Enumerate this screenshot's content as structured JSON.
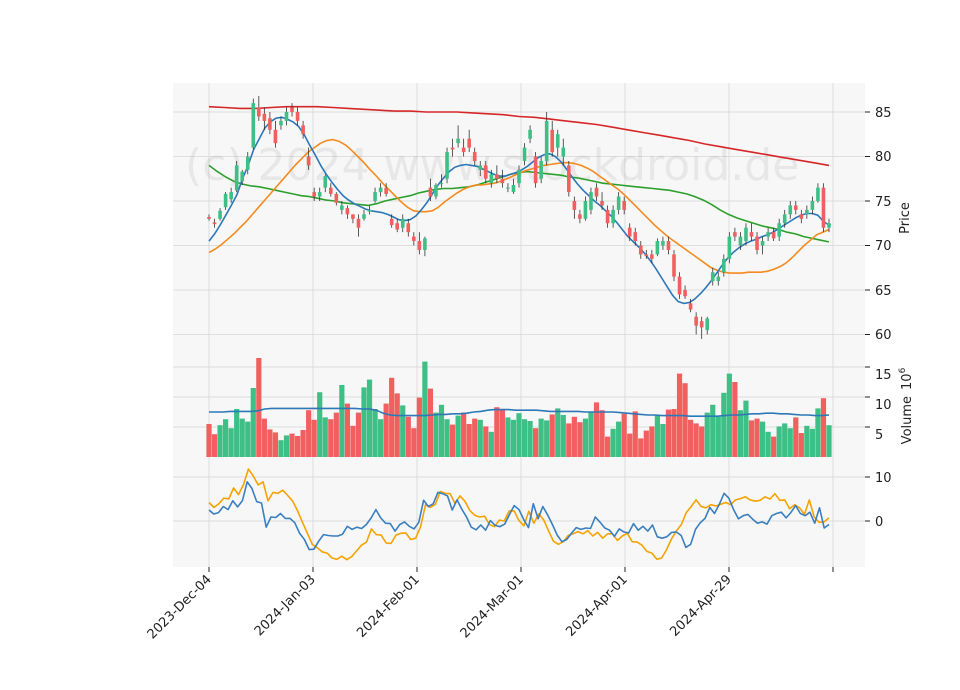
{
  "watermark": "(c) 2024 www.stockdroid.de",
  "colors": {
    "up": "#3dbf86",
    "down": "#f25f5f",
    "panel_bg": "#f7f7f7",
    "grid": "#d6d6d6",
    "sma_fast": "#2c78b8",
    "sma_mid": "#f58a1f",
    "sma_slow": "#2ca02c",
    "sma_long": "#d62728",
    "volume_avg": "#2c78b8",
    "macd": "#3a7fc0",
    "signal": "#f5a300"
  },
  "axes": {
    "price_label": "Price",
    "volume_label": "Volume",
    "volume_exp_base": "10",
    "volume_exp_power": "6",
    "price_ticks": [
      "60",
      "65",
      "70",
      "75",
      "80",
      "85"
    ],
    "volume_ticks": [
      "5",
      "10",
      "15"
    ],
    "macd_ticks": [
      "0",
      "10"
    ],
    "x_tick_labels": [
      "2023-Dec-04",
      "2024-Jan-03",
      "2024-Feb-01",
      "2024-Mar-01",
      "2024-Apr-01",
      "2024-Apr-29"
    ]
  },
  "chart_data": {
    "type": "candlestick",
    "ohlc": [
      [
        73.2,
        73.5,
        72.8,
        73.0
      ],
      [
        72.6,
        73.0,
        72.0,
        72.4
      ],
      [
        73.0,
        74.2,
        72.8,
        73.9
      ],
      [
        74.3,
        76.0,
        74.0,
        75.8
      ],
      [
        75.2,
        76.5,
        74.8,
        76.0
      ],
      [
        76.2,
        79.5,
        76.0,
        79.0
      ],
      [
        77.2,
        78.5,
        76.8,
        78.3
      ],
      [
        78.5,
        80.5,
        78.0,
        80.0
      ],
      [
        81.0,
        86.5,
        80.8,
        86.0
      ],
      [
        85.5,
        86.8,
        84.0,
        84.5
      ],
      [
        84.8,
        85.5,
        83.0,
        84.0
      ],
      [
        84.3,
        85.0,
        82.5,
        83.0
      ],
      [
        83.0,
        84.0,
        81.0,
        81.5
      ],
      [
        83.5,
        84.5,
        83.0,
        84.0
      ],
      [
        84.0,
        85.5,
        83.5,
        85.0
      ],
      [
        85.5,
        86.0,
        84.5,
        85.0
      ],
      [
        85.0,
        85.5,
        83.5,
        84.0
      ],
      [
        83.5,
        84.0,
        82.0,
        82.5
      ],
      [
        80.0,
        81.0,
        78.5,
        79.0
      ],
      [
        76.0,
        76.5,
        75.0,
        75.5
      ],
      [
        75.5,
        76.5,
        75.0,
        76.0
      ],
      [
        76.5,
        78.0,
        76.0,
        77.8
      ],
      [
        76.5,
        77.0,
        75.5,
        75.8
      ],
      [
        75.8,
        76.0,
        74.5,
        74.8
      ],
      [
        74.0,
        75.0,
        73.5,
        74.5
      ],
      [
        74.2,
        74.5,
        73.0,
        73.5
      ],
      [
        73.5,
        73.5,
        72.5,
        73.0
      ],
      [
        73.0,
        73.5,
        71.0,
        72.0
      ],
      [
        73.0,
        74.0,
        72.8,
        73.5
      ],
      [
        73.8,
        74.5,
        73.5,
        74.0
      ],
      [
        75.0,
        76.5,
        74.8,
        76.0
      ],
      [
        76.0,
        77.0,
        75.5,
        76.5
      ],
      [
        76.5,
        77.0,
        75.5,
        75.8
      ],
      [
        73.0,
        73.5,
        72.0,
        72.3
      ],
      [
        72.5,
        73.0,
        71.5,
        71.8
      ],
      [
        72.0,
        73.5,
        71.5,
        73.0
      ],
      [
        72.5,
        73.0,
        71.0,
        71.5
      ],
      [
        71.0,
        71.5,
        70.0,
        70.5
      ],
      [
        70.5,
        71.5,
        69.0,
        69.5
      ],
      [
        69.5,
        71.0,
        68.8,
        70.8
      ],
      [
        76.5,
        77.5,
        75.0,
        75.5
      ],
      [
        75.5,
        77.0,
        75.2,
        76.8
      ],
      [
        77.0,
        78.0,
        76.5,
        77.0
      ],
      [
        77.5,
        81.0,
        77.0,
        80.5
      ],
      [
        81.0,
        82.0,
        80.0,
        80.8
      ],
      [
        81.5,
        83.5,
        81.0,
        82.0
      ],
      [
        81.0,
        82.0,
        80.0,
        80.5
      ],
      [
        82.0,
        83.0,
        80.5,
        81.0
      ],
      [
        80.5,
        81.0,
        79.0,
        79.5
      ],
      [
        78.5,
        79.5,
        77.8,
        79.0
      ],
      [
        79.0,
        79.5,
        77.0,
        77.5
      ],
      [
        77.0,
        78.5,
        76.5,
        78.0
      ],
      [
        78.0,
        79.0,
        77.0,
        77.5
      ],
      [
        77.5,
        78.5,
        76.5,
        77.0
      ],
      [
        76.5,
        77.0,
        76.0,
        76.5
      ],
      [
        76.0,
        77.5,
        75.8,
        76.8
      ],
      [
        77.0,
        79.0,
        76.5,
        78.5
      ],
      [
        79.5,
        81.5,
        79.0,
        81.0
      ],
      [
        82.0,
        83.5,
        81.5,
        83.0
      ],
      [
        80.0,
        80.5,
        76.5,
        77.0
      ],
      [
        77.5,
        80.0,
        77.0,
        79.5
      ],
      [
        79.5,
        85.0,
        79.0,
        84.0
      ],
      [
        83.0,
        84.0,
        80.0,
        80.5
      ],
      [
        81.0,
        83.0,
        80.0,
        82.5
      ],
      [
        80.0,
        82.0,
        79.0,
        81.0
      ],
      [
        79.0,
        79.5,
        75.5,
        76.0
      ],
      [
        75.0,
        75.5,
        73.0,
        74.0
      ],
      [
        73.5,
        74.0,
        72.5,
        73.0
      ],
      [
        73.0,
        75.5,
        72.8,
        75.0
      ],
      [
        74.0,
        76.5,
        73.5,
        76.0
      ],
      [
        76.5,
        77.0,
        75.0,
        75.5
      ],
      [
        75.0,
        76.0,
        74.0,
        74.5
      ],
      [
        74.0,
        74.5,
        72.0,
        72.5
      ],
      [
        72.5,
        74.5,
        72.0,
        74.0
      ],
      [
        74.0,
        76.0,
        73.5,
        75.5
      ],
      [
        75.0,
        75.5,
        73.5,
        74.0
      ],
      [
        72.0,
        72.5,
        70.5,
        71.0
      ],
      [
        71.5,
        72.0,
        70.0,
        70.5
      ],
      [
        70.0,
        70.5,
        68.5,
        69.0
      ],
      [
        69.0,
        69.5,
        68.5,
        68.8
      ],
      [
        69.0,
        69.5,
        68.0,
        68.5
      ],
      [
        69.0,
        70.8,
        68.8,
        70.5
      ],
      [
        70.0,
        71.0,
        69.5,
        70.5
      ],
      [
        70.5,
        71.0,
        69.0,
        69.5
      ],
      [
        69.0,
        69.5,
        66.0,
        66.5
      ],
      [
        66.5,
        67.0,
        64.0,
        64.5
      ],
      [
        65.0,
        65.5,
        64.0,
        64.3
      ],
      [
        63.5,
        64.0,
        62.5,
        62.8
      ],
      [
        62.0,
        62.5,
        60.0,
        61.0
      ],
      [
        61.5,
        62.0,
        59.5,
        60.8
      ],
      [
        60.5,
        62.0,
        60.0,
        61.8
      ],
      [
        66.0,
        67.5,
        65.5,
        67.0
      ],
      [
        66.0,
        67.0,
        65.5,
        66.5
      ],
      [
        67.0,
        69.0,
        66.5,
        68.5
      ],
      [
        68.5,
        71.5,
        68.0,
        71.0
      ],
      [
        71.5,
        72.0,
        70.5,
        71.0
      ],
      [
        70.0,
        71.5,
        69.5,
        71.0
      ],
      [
        70.5,
        72.5,
        70.0,
        72.0
      ],
      [
        71.5,
        72.5,
        70.5,
        71.0
      ],
      [
        71.0,
        71.5,
        69.0,
        69.5
      ],
      [
        70.0,
        71.0,
        69.0,
        70.5
      ],
      [
        71.0,
        72.0,
        70.5,
        71.5
      ],
      [
        71.5,
        72.0,
        70.5,
        70.8
      ],
      [
        71.0,
        73.0,
        70.5,
        72.5
      ],
      [
        72.5,
        74.0,
        72.0,
        73.5
      ],
      [
        73.5,
        75.0,
        73.0,
        74.5
      ],
      [
        74.5,
        75.0,
        73.5,
        74.0
      ],
      [
        73.5,
        74.0,
        72.5,
        73.0
      ],
      [
        73.5,
        74.5,
        73.0,
        74.0
      ],
      [
        74.0,
        75.5,
        73.5,
        75.0
      ],
      [
        75.0,
        77.0,
        74.8,
        76.5
      ],
      [
        76.5,
        77.0,
        71.5,
        72.0
      ],
      [
        72.0,
        73.0,
        71.5,
        72.5
      ]
    ],
    "sma_fast": [
      70.5,
      71.3,
      72.3,
      73.4,
      74.5,
      75.7,
      77.5,
      79.0,
      80.8,
      82.0,
      83.2,
      83.9,
      84.3,
      84.4,
      84.2,
      83.9,
      83.4,
      82.5,
      81.3,
      80.2,
      79.0,
      78.0,
      77.1,
      76.3,
      75.6,
      75.1,
      74.7,
      74.4,
      74.1,
      73.9,
      73.8,
      73.7,
      73.5,
      73.2,
      72.9,
      72.8,
      72.9,
      73.3,
      74.0,
      74.8,
      75.8,
      76.8,
      77.6,
      78.3,
      78.8,
      79.0,
      79.1,
      79.0,
      78.9,
      78.6,
      78.3,
      78.0,
      77.8,
      77.8,
      78.0,
      78.2,
      78.5,
      78.9,
      79.4,
      79.9,
      80.2,
      80.3,
      80.0,
      79.4,
      78.6,
      77.7,
      76.9,
      76.2,
      75.6,
      75.0,
      74.5,
      73.9,
      73.3,
      72.6,
      71.8,
      71.0,
      70.4,
      69.8,
      69.1,
      68.3,
      67.4,
      66.4,
      65.4,
      64.4,
      63.7,
      63.5,
      63.6,
      64.0,
      64.6,
      65.3,
      66.1,
      67.0,
      67.9,
      68.7,
      69.3,
      69.8,
      70.2,
      70.5,
      70.7,
      71.0,
      71.2,
      71.5,
      71.9,
      72.3,
      72.7,
      73.1,
      73.4,
      73.6,
      73.6,
      73.4,
      72.7,
      72.3
    ],
    "sma_mid": [
      69.2,
      69.6,
      70.1,
      70.7,
      71.3,
      72.0,
      72.7,
      73.5,
      74.3,
      75.1,
      75.9,
      76.7,
      77.5,
      78.3,
      79.1,
      79.8,
      80.5,
      81.0,
      81.5,
      81.8,
      81.9,
      81.7,
      81.3,
      80.7,
      80.0,
      79.3,
      78.5,
      77.8,
      77.0,
      76.3,
      75.6,
      74.9,
      74.3,
      73.9,
      73.8,
      73.8,
      73.9,
      74.3,
      74.9,
      75.4,
      75.9,
      76.3,
      76.6,
      76.8,
      76.8,
      76.9,
      77.0,
      77.2,
      77.5,
      77.8,
      78.1,
      78.4,
      78.6,
      78.8,
      79.0,
      79.1,
      79.2,
      79.3,
      79.3,
      79.2,
      79.0,
      78.7,
      78.3,
      77.8,
      77.3,
      76.8,
      76.3,
      75.7,
      75.0,
      74.3,
      73.6,
      72.9,
      72.2,
      71.6,
      71.0,
      70.5,
      70.0,
      69.5,
      69.0,
      68.5,
      68.0,
      67.5,
      67.2,
      67.0,
      66.9,
      66.9,
      66.9,
      67.0,
      67.0,
      67.0,
      67.1,
      67.3,
      67.6,
      68.0,
      68.6,
      69.3,
      70.0,
      70.6,
      71.2,
      71.5,
      71.8
    ],
    "sma_slow": [
      79.0,
      78.3,
      77.7,
      77.2,
      76.9,
      76.7,
      76.6,
      76.4,
      76.2,
      76.0,
      75.8,
      75.6,
      75.5,
      75.3,
      75.1,
      75.0,
      74.8,
      74.7,
      74.6,
      74.5,
      74.7,
      75.0,
      75.2,
      75.4,
      75.6,
      75.9,
      76.1,
      76.3,
      76.4,
      76.4,
      76.5,
      76.6,
      76.8,
      77.1,
      77.4,
      77.7,
      78.0,
      78.2,
      78.3,
      78.2,
      78.1,
      78.0,
      77.9,
      77.7,
      77.6,
      77.4,
      77.2,
      77.0,
      76.9,
      76.8,
      76.7,
      76.6,
      76.5,
      76.4,
      76.3,
      76.2,
      76.0,
      75.8,
      75.5,
      75.1,
      74.6,
      74.0,
      73.5,
      73.1,
      72.8,
      72.5,
      72.2,
      72.0,
      71.8,
      71.5,
      71.3,
      71.0,
      70.8,
      70.6,
      70.4
    ],
    "sma_long": [
      85.6,
      85.5,
      85.4,
      85.4,
      85.5,
      85.6,
      85.6,
      85.6,
      85.5,
      85.4,
      85.3,
      85.2,
      85.1,
      85.1,
      85.0,
      85.0,
      85.0,
      84.9,
      84.8,
      84.7,
      84.5,
      84.4,
      84.2,
      84.0,
      83.8,
      83.6,
      83.3,
      83.0,
      82.7,
      82.4,
      82.1,
      81.8,
      81.4,
      81.1,
      80.8,
      80.5,
      80.2,
      79.9,
      79.6,
      79.3,
      79.0
    ],
    "volume": [
      5.5,
      3.8,
      5.3,
      6.3,
      4.8,
      8.0,
      6.4,
      5.9,
      11.5,
      16.5,
      6.4,
      4.6,
      4.1,
      2.8,
      3.6,
      3.9,
      3.5,
      4.5,
      7.8,
      6.2,
      10.8,
      6.6,
      6.3,
      7.4,
      12.0,
      8.9,
      5.2,
      7.4,
      11.6,
      12.9,
      8.0,
      6.3,
      8.9,
      13.2,
      10.6,
      8.6,
      6.7,
      4.8,
      9.9,
      15.9,
      11.4,
      7.4,
      8.7,
      6.3,
      5.4,
      6.9,
      7.4,
      5.5,
      6.4,
      6.2,
      5.1,
      4.2,
      8.3,
      7.9,
      6.6,
      6.2,
      7.3,
      6.3,
      6.0,
      4.8,
      6.4,
      6.1,
      7.1,
      8.1,
      7.0,
      5.6,
      6.7,
      5.8,
      6.4,
      7.5,
      9.1,
      7.8,
      3.4,
      4.7,
      5.9,
      7.2,
      3.9,
      7.6,
      3.1,
      4.4,
      5.1,
      6.9,
      5.5,
      7.9,
      8.0,
      13.9,
      12.3,
      6.2,
      5.6,
      5.1,
      7.4,
      8.7,
      6.7,
      10.7,
      13.9,
      12.5,
      7.8,
      9.4,
      6.1,
      6.4,
      5.9,
      4.2,
      3.4,
      5.1,
      5.6,
      4.8,
      6.6,
      4.0,
      5.2,
      4.7,
      8.1,
      9.8,
      5.3
    ],
    "volume_avg": [
      7.5,
      7.5,
      7.5,
      7.6,
      7.6,
      7.6,
      7.6,
      7.7,
      8.0,
      8.1,
      8.1,
      8.1,
      8.1,
      8.1,
      8.1,
      8.1,
      8.1,
      8.1,
      8.1,
      8.1,
      8.1,
      8.1,
      8.0,
      8.0,
      7.8,
      7.3,
      7.0,
      6.9,
      6.9,
      6.9,
      6.9,
      6.9,
      7.0,
      7.1,
      7.1,
      7.2,
      7.2,
      7.3,
      7.5,
      7.6,
      7.8,
      7.9,
      7.9,
      7.9,
      7.8,
      7.8,
      7.8,
      7.8,
      7.7,
      7.6,
      7.6,
      7.6,
      7.6,
      7.6,
      7.5,
      7.5,
      7.5,
      7.5,
      7.5,
      7.4,
      7.3,
      7.2,
      7.1,
      7.0,
      7.0,
      6.9,
      6.9,
      6.9,
      6.9,
      6.8,
      6.8,
      6.8,
      6.8,
      6.8,
      6.9,
      7.0,
      7.0,
      7.1,
      7.2,
      7.2,
      7.3,
      7.3,
      7.2,
      7.2,
      7.1,
      7.0,
      7.0,
      6.9,
      6.9,
      7.0
    ],
    "macd": [
      2.5,
      1.6,
      1.9,
      3.3,
      2.6,
      4.6,
      3.2,
      4.6,
      8.9,
      7.4,
      4.4,
      4.1,
      -1.4,
      0.9,
      0.8,
      1.7,
      0.6,
      0.6,
      -0.4,
      -2.8,
      -4.2,
      -6.5,
      -6.4,
      -4.6,
      -3.1,
      -3.3,
      -3.4,
      -3.4,
      -3.0,
      -1.2,
      -1.9,
      -1.4,
      -1.7,
      -0.8,
      0.7,
      2.6,
      0.7,
      -0.5,
      -0.6,
      -2.3,
      -0.8,
      -0.2,
      -1.2,
      -1.8,
      -0.3,
      4.7,
      3.3,
      3.9,
      6.5,
      6.2,
      5.7,
      2.5,
      4.8,
      2.7,
      0.9,
      -1.4,
      -2.0,
      -0.9,
      -2.1,
      0.1,
      -1.0,
      -1.3,
      -0.7,
      1.5,
      3.5,
      2.6,
      0.3,
      -1.5,
      3.9,
      0.5,
      3.3,
      1.4,
      -0.8,
      -3.2,
      -4.7,
      -4.2,
      -2.8,
      -1.5,
      -1.9,
      -1.6,
      -1.7,
      0.9,
      -0.3,
      -1.6,
      -2.1,
      -3.5,
      -1.8,
      -2.5,
      -2.7,
      -0.6,
      -2.1,
      -1.2,
      -2.3,
      -0.9,
      -3.6,
      -3.9,
      -3.6,
      -2.6,
      -2.5,
      -3.3,
      -6.0,
      -5.3,
      -1.9,
      -0.4,
      0.6,
      3.1,
      1.7,
      3.8,
      6.3,
      5.2,
      2.6,
      0.5,
      1.2,
      1.5,
      0.4,
      -0.5,
      -0.2,
      -0.7,
      1.2,
      1.7,
      2.0,
      0.7,
      1.9,
      3.5,
      1.7,
      1.2,
      2.0,
      -0.5,
      3.0,
      -1.6,
      -0.8
    ],
    "signal": [
      4.2,
      3.1,
      3.9,
      5.2,
      5.0,
      7.5,
      6.0,
      8.2,
      11.8,
      10.2,
      8.2,
      8.9,
      4.6,
      6.5,
      6.3,
      7.0,
      5.8,
      4.5,
      2.3,
      -0.3,
      -2.8,
      -5.3,
      -6.1,
      -7.0,
      -7.3,
      -8.4,
      -8.7,
      -8.0,
      -8.8,
      -8.1,
      -6.8,
      -5.5,
      -4.8,
      -1.8,
      -3.1,
      -3.2,
      -5.0,
      -5.1,
      -3.2,
      -2.8,
      -2.7,
      -4.2,
      -3.9,
      -1.3,
      3.7,
      3.1,
      3.8,
      6.7,
      6.3,
      6.2,
      4.0,
      5.7,
      4.5,
      2.4,
      1.3,
      0.9,
      1.1,
      -0.8,
      -1.3,
      0.2,
      0.0,
      2.3,
      2.3,
      0.1,
      -1.1,
      2.2,
      -0.5,
      1.6,
      0.3,
      -2.2,
      -4.6,
      -5.3,
      -4.7,
      -3.3,
      -2.9,
      -2.4,
      -2.9,
      -2.2,
      -3.4,
      -2.6,
      -3.9,
      -2.9,
      -2.9,
      -4.4,
      -3.4,
      -2.8,
      -4.7,
      -4.8,
      -5.5,
      -6.9,
      -7.3,
      -8.7,
      -8.4,
      -6.5,
      -4.1,
      -2.2,
      -0.8,
      1.9,
      3.3,
      4.8,
      3.3,
      3.0,
      3.7,
      3.4,
      3.8,
      4.2,
      3.7,
      4.8,
      5.1,
      5.5,
      4.8,
      4.5,
      4.7,
      5.5,
      5.0,
      6.2,
      4.7,
      4.8,
      2.8,
      3.7,
      3.0,
      1.5,
      4.8,
      0.9,
      -0.3,
      -0.2,
      0.7
    ]
  }
}
